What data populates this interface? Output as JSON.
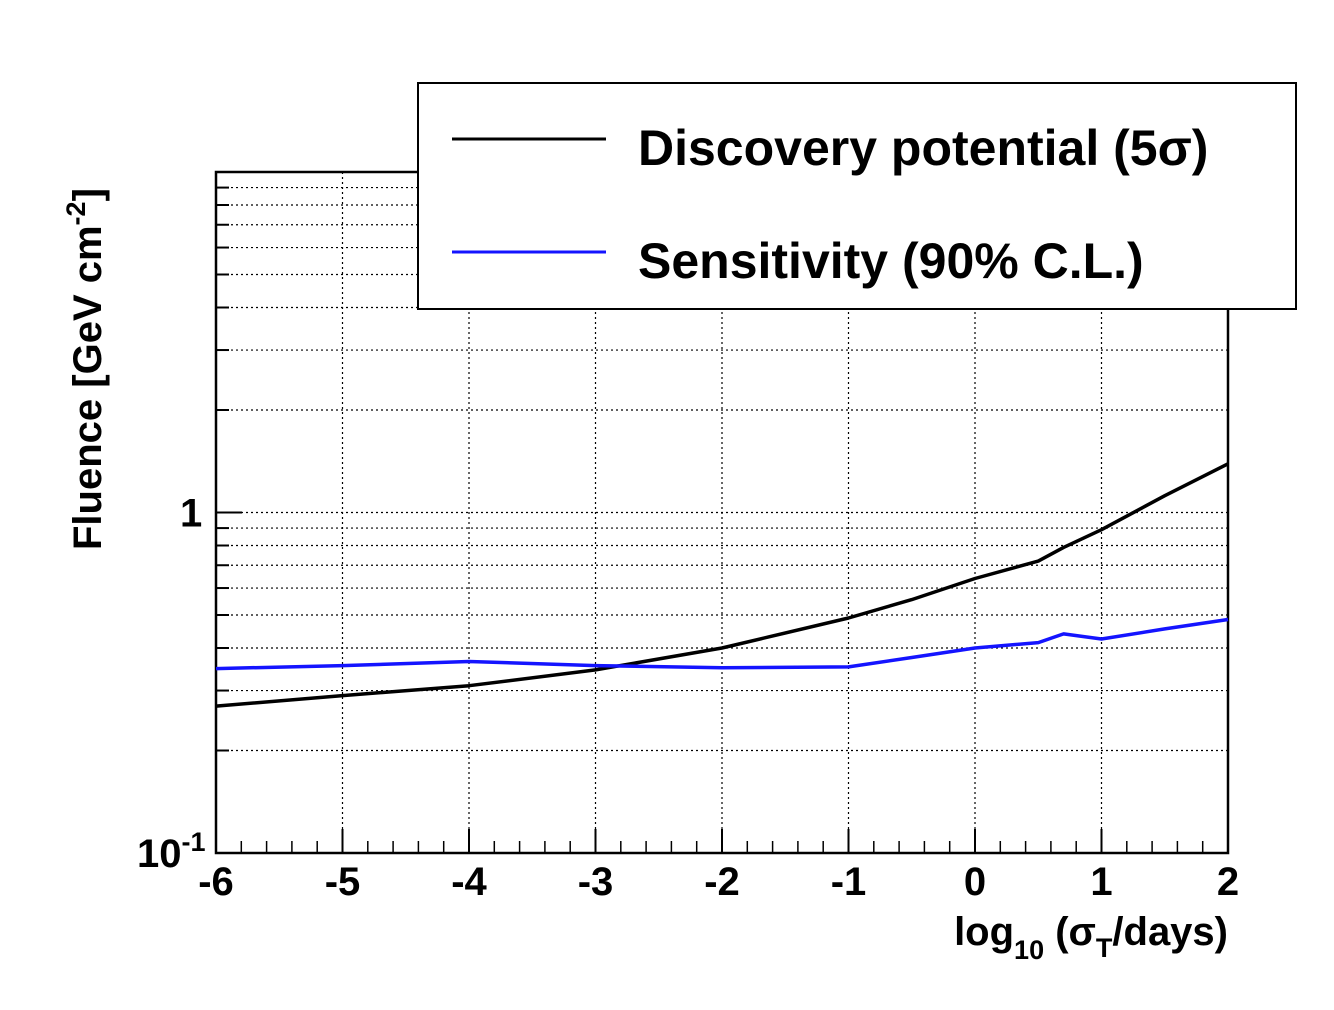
{
  "chart_data": {
    "type": "line",
    "title": "",
    "xlabel": {
      "main": "log",
      "sub1": "10",
      "mid": " (σ",
      "sub2": "T",
      "end": "/days)"
    },
    "ylabel": {
      "main": "Fluence [GeV cm",
      "sup": "-2",
      "end": "]"
    },
    "xscale": "linear",
    "yscale": "log",
    "xlim": [
      -6,
      2
    ],
    "ylim": [
      0.1,
      10
    ],
    "grid": true,
    "x_ticks": [
      {
        "value": -6,
        "label": "-6"
      },
      {
        "value": -5,
        "label": "-5"
      },
      {
        "value": -4,
        "label": "-4"
      },
      {
        "value": -3,
        "label": "-3"
      },
      {
        "value": -2,
        "label": "-2"
      },
      {
        "value": -1,
        "label": "-1"
      },
      {
        "value": 0,
        "label": "0"
      },
      {
        "value": 1,
        "label": "1"
      },
      {
        "value": 2,
        "label": "2"
      }
    ],
    "y_ticks": [
      {
        "value": 0.1,
        "label": "10",
        "sup": "-1"
      },
      {
        "value": 1,
        "label": "1",
        "sup": ""
      }
    ],
    "legend_position": "top-right",
    "series": [
      {
        "name": "Discovery potential (5σ)",
        "color": "#000000",
        "x": [
          -6,
          -5,
          -4,
          -3,
          -2,
          -1,
          -0.5,
          0,
          0.5,
          0.7,
          1,
          1.5,
          2
        ],
        "y": [
          0.27,
          0.29,
          0.31,
          0.345,
          0.4,
          0.49,
          0.555,
          0.64,
          0.72,
          0.79,
          0.89,
          1.12,
          1.39
        ]
      },
      {
        "name": "Sensitivity (90% C.L.)",
        "color": "#1414ff",
        "x": [
          -6,
          -5,
          -4,
          -3,
          -2,
          -1,
          -0.5,
          0,
          0.5,
          0.7,
          1,
          1.5,
          2
        ],
        "y": [
          0.348,
          0.355,
          0.365,
          0.355,
          0.35,
          0.352,
          0.375,
          0.4,
          0.415,
          0.44,
          0.425,
          0.455,
          0.485
        ]
      }
    ]
  }
}
